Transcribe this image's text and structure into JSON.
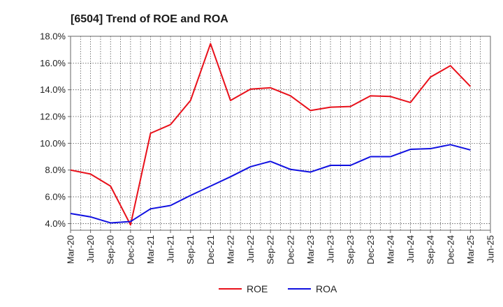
{
  "chart_data": {
    "type": "line",
    "title": "[6504]  Trend of ROE and ROA",
    "xlabel": "",
    "ylabel": "",
    "categories": [
      "Mar-20",
      "Jun-20",
      "Sep-20",
      "Dec-20",
      "Mar-21",
      "Jun-21",
      "Sep-21",
      "Dec-21",
      "Mar-22",
      "Jun-22",
      "Sep-22",
      "Dec-22",
      "Mar-23",
      "Jun-23",
      "Sep-23",
      "Dec-23",
      "Mar-24",
      "Jun-24",
      "Sep-24",
      "Dec-24",
      "Mar-25",
      "Jun-25"
    ],
    "ylim": [
      3.5,
      18.0
    ],
    "yticks": [
      4.0,
      6.0,
      8.0,
      10.0,
      12.0,
      14.0,
      16.0,
      18.0
    ],
    "ytick_labels": [
      "4.0%",
      "6.0%",
      "8.0%",
      "10.0%",
      "12.0%",
      "14.0%",
      "16.0%",
      "18.0%"
    ],
    "grid": true,
    "legend_position": "bottom-center",
    "series": [
      {
        "name": "ROE",
        "color": "#e8101a",
        "values": [
          8.0,
          7.7,
          6.8,
          3.9,
          10.75,
          11.4,
          13.2,
          17.45,
          13.2,
          14.05,
          14.15,
          13.55,
          12.45,
          12.7,
          12.75,
          13.55,
          13.5,
          13.05,
          14.95,
          15.8,
          14.25,
          null
        ]
      },
      {
        "name": "ROA",
        "color": "#1010e0",
        "values": [
          4.75,
          4.5,
          4.05,
          4.15,
          5.1,
          5.35,
          6.1,
          6.8,
          7.5,
          8.25,
          8.65,
          8.05,
          7.85,
          8.35,
          8.35,
          9.0,
          9.0,
          9.55,
          9.6,
          9.9,
          9.5,
          null
        ]
      }
    ]
  }
}
